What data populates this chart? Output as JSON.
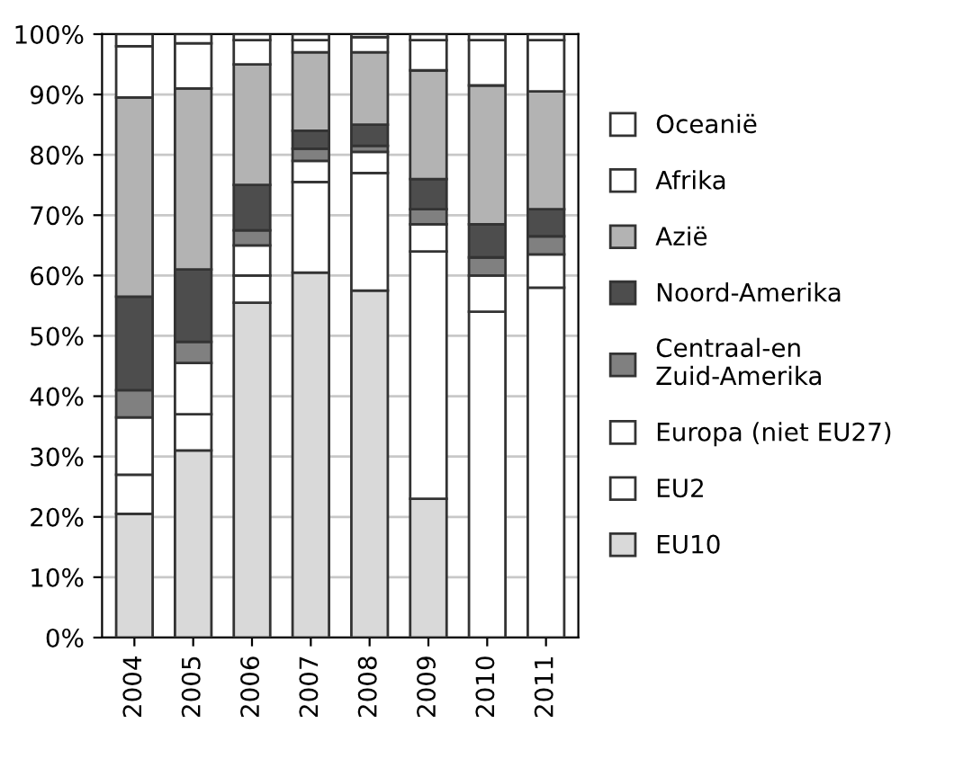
{
  "chart_data": {
    "type": "bar",
    "stacked": true,
    "categories": [
      "2004",
      "2005",
      "2006",
      "2007",
      "2008",
      "2009",
      "2010",
      "2011"
    ],
    "series": [
      {
        "name": "EU10",
        "color": "#d9d9d9",
        "values": [
          20.5,
          31,
          55.5,
          60.5,
          57.5,
          23,
          null,
          null
        ]
      },
      {
        "name": "EU2",
        "color": "#ffffff",
        "values": [
          6.5,
          6,
          4.5,
          15,
          19.5,
          41,
          54,
          58
        ]
      },
      {
        "name": "Europa (niet EU27)",
        "color": "#ffffff",
        "values": [
          9.5,
          8.5,
          5,
          3.5,
          3.5,
          4.5,
          6,
          5.5
        ]
      },
      {
        "name": "Centraal-en\nZuid-Amerika",
        "color": "#808080",
        "values": [
          4.5,
          3.5,
          2.5,
          2,
          1,
          2.5,
          3,
          3
        ]
      },
      {
        "name": "Noord-Amerika",
        "color": "#4d4d4d",
        "values": [
          15.5,
          12,
          7.5,
          3,
          3.5,
          5,
          5.5,
          4.5
        ]
      },
      {
        "name": "Azië",
        "color": "#b3b3b3",
        "values": [
          33,
          30,
          20,
          13,
          12,
          18,
          23,
          19.5
        ]
      },
      {
        "name": "Afrika",
        "color": "#ffffff",
        "values": [
          8.5,
          7.5,
          4,
          2,
          2.5,
          5,
          7.5,
          8.5
        ]
      },
      {
        "name": "Oceanië",
        "color": "#ffffff",
        "values": [
          2,
          1.5,
          1,
          1,
          0.5,
          1,
          1,
          1
        ]
      }
    ],
    "ylim": [
      0,
      100
    ],
    "yticks": [
      {
        "value": 0,
        "label": "0%"
      },
      {
        "value": 10,
        "label": "10%"
      },
      {
        "value": 20,
        "label": "20%"
      },
      {
        "value": 30,
        "label": "30%"
      },
      {
        "value": 40,
        "label": "40%"
      },
      {
        "value": 50,
        "label": "50%"
      },
      {
        "value": 60,
        "label": "60%"
      },
      {
        "value": 70,
        "label": "70%"
      },
      {
        "value": 80,
        "label": "80%"
      },
      {
        "value": 90,
        "label": "90%"
      },
      {
        "value": 100,
        "label": "100%"
      }
    ],
    "grid": "y",
    "legend": "right"
  }
}
